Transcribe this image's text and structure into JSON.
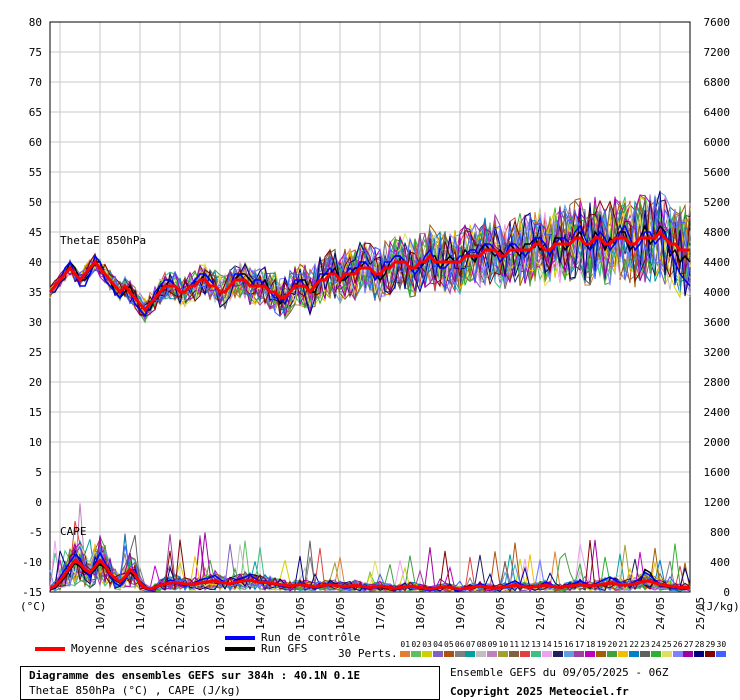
{
  "chart_data": {
    "type": "line",
    "title": "Diagramme des ensembles GEFS sur 384h : 40.1N 0.1E",
    "subtitle": "ThetaE 850hPa (°C) , CAPE (J/kg)",
    "left_axis": {
      "label": "(°C)",
      "min": -15,
      "max": 80,
      "ticks": [
        80,
        75,
        70,
        65,
        60,
        55,
        50,
        45,
        40,
        35,
        30,
        25,
        20,
        15,
        10,
        5,
        0,
        -5,
        -10,
        -15
      ]
    },
    "right_axis": {
      "label": "(J/kg)",
      "min": 0,
      "max": 7600,
      "ticks": [
        7600,
        7200,
        6800,
        6400,
        6000,
        5600,
        5200,
        4800,
        4400,
        4000,
        3600,
        3200,
        2800,
        2400,
        2000,
        1600,
        1200,
        800,
        400,
        0
      ]
    },
    "x_ticks": [
      "10/05",
      "11/05",
      "12/05",
      "13/05",
      "14/05",
      "15/05",
      "16/05",
      "17/05",
      "18/05",
      "19/05",
      "20/05",
      "21/05",
      "22/05",
      "23/05",
      "24/05",
      "25/05"
    ],
    "x_range_steps": 128,
    "grid": true,
    "panel_labels": [
      "ThetaE 850hPa",
      "CAPE"
    ],
    "thetae_mean": [
      35,
      36,
      37,
      38,
      39,
      38,
      37,
      38,
      39,
      40,
      39,
      38,
      37,
      36,
      35,
      36,
      35,
      34,
      33,
      32,
      33,
      34,
      35,
      36,
      36,
      36,
      35,
      35,
      36,
      36,
      37,
      37,
      36,
      36,
      35,
      35,
      36,
      37,
      37,
      37,
      36,
      36,
      36,
      36,
      35,
      35,
      34,
      34,
      35,
      36,
      36,
      36,
      35,
      36,
      37,
      37,
      38,
      38,
      37,
      38,
      38,
      38,
      39,
      39,
      39,
      38,
      38,
      39,
      39,
      40,
      40,
      40,
      39,
      39,
      40,
      40,
      41,
      40,
      40,
      40,
      40,
      40,
      40,
      41,
      41,
      41,
      41,
      42,
      42,
      42,
      41,
      41,
      42,
      42,
      42,
      42,
      42,
      43,
      43,
      42,
      42,
      43,
      43,
      43,
      43,
      44,
      44,
      43,
      43,
      44,
      44,
      43,
      43,
      44,
      44,
      44,
      43,
      43,
      44,
      44,
      44,
      44,
      45,
      44,
      43,
      43,
      42,
      42,
      42
    ],
    "thetae_control": [
      35,
      36,
      37,
      39,
      40,
      38,
      36,
      36,
      38,
      41,
      40,
      37,
      36,
      35,
      34,
      36,
      35,
      33,
      32,
      31,
      33,
      35,
      36,
      37,
      37,
      36,
      35,
      35,
      36,
      37,
      38,
      38,
      37,
      36,
      35,
      35,
      36,
      38,
      38,
      37,
      36,
      37,
      37,
      36,
      35,
      34,
      34,
      33,
      35,
      37,
      37,
      36,
      35,
      36,
      38,
      38,
      39,
      38,
      37,
      38,
      39,
      38,
      40,
      40,
      39,
      37,
      38,
      40,
      40,
      41,
      41,
      40,
      39,
      38,
      39,
      41,
      42,
      40,
      39,
      39,
      40,
      40,
      41,
      41,
      42,
      42,
      41,
      43,
      43,
      42,
      40,
      41,
      43,
      43,
      42,
      41,
      42,
      44,
      44,
      43,
      41,
      43,
      44,
      44,
      43,
      45,
      46,
      44,
      42,
      43,
      45,
      44,
      42,
      43,
      45,
      46,
      44,
      42,
      43,
      45,
      45,
      43,
      44,
      45,
      42,
      40,
      38,
      37,
      36
    ],
    "thetae_gfs": [
      35,
      36,
      37,
      38,
      40,
      39,
      37,
      37,
      38,
      40,
      40,
      38,
      37,
      35,
      34,
      35,
      36,
      34,
      33,
      32,
      32,
      34,
      36,
      36,
      37,
      36,
      35,
      35,
      36,
      36,
      37,
      38,
      37,
      36,
      35,
      35,
      36,
      37,
      38,
      38,
      37,
      36,
      36,
      37,
      35,
      35,
      33,
      34,
      35,
      36,
      37,
      37,
      35,
      35,
      37,
      38,
      38,
      39,
      37,
      37,
      38,
      39,
      39,
      40,
      39,
      38,
      37,
      38,
      40,
      41,
      41,
      40,
      39,
      39,
      39,
      40,
      41,
      41,
      39,
      40,
      41,
      40,
      40,
      42,
      41,
      40,
      42,
      43,
      42,
      41,
      42,
      41,
      43,
      42,
      41,
      43,
      43,
      44,
      42,
      43,
      41,
      44,
      44,
      42,
      43,
      44,
      45,
      43,
      42,
      45,
      44,
      42,
      44,
      43,
      45,
      45,
      42,
      43,
      44,
      46,
      43,
      44,
      46,
      45,
      41,
      42,
      40,
      41,
      40
    ],
    "cape_mean": [
      50,
      80,
      150,
      240,
      330,
      420,
      380,
      300,
      260,
      340,
      420,
      350,
      250,
      180,
      140,
      200,
      300,
      240,
      120,
      60,
      40,
      60,
      90,
      110,
      120,
      130,
      120,
      110,
      100,
      110,
      120,
      130,
      140,
      150,
      130,
      120,
      110,
      130,
      140,
      150,
      160,
      140,
      130,
      130,
      120,
      110,
      100,
      90,
      80,
      90,
      100,
      90,
      80,
      70,
      80,
      90,
      100,
      90,
      80,
      70,
      80,
      90,
      80,
      70,
      60,
      70,
      80,
      70,
      60,
      50,
      60,
      70,
      80,
      70,
      60,
      50,
      40,
      50,
      60,
      70,
      60,
      50,
      40,
      50,
      60,
      70,
      80,
      70,
      60,
      50,
      60,
      70,
      80,
      90,
      80,
      70,
      60,
      70,
      80,
      90,
      80,
      70,
      60,
      70,
      80,
      90,
      100,
      90,
      80,
      90,
      100,
      110,
      120,
      110,
      100,
      90,
      100,
      110,
      130,
      150,
      140,
      120,
      100,
      90,
      80,
      70,
      60,
      60,
      60
    ],
    "cape_control": [
      40,
      60,
      200,
      300,
      400,
      500,
      450,
      300,
      200,
      380,
      520,
      400,
      200,
      120,
      80,
      150,
      280,
      300,
      100,
      40,
      20,
      40,
      80,
      120,
      160,
      140,
      100,
      80,
      90,
      130,
      160,
      180,
      190,
      220,
      170,
      130,
      100,
      150,
      180,
      200,
      230,
      180,
      140,
      150,
      120,
      100,
      80,
      70,
      60,
      90,
      120,
      110,
      80,
      50,
      60,
      80,
      120,
      100,
      70,
      50,
      60,
      90,
      70,
      50,
      40,
      60,
      90,
      80,
      50,
      30,
      40,
      60,
      90,
      70,
      40,
      30,
      20,
      30,
      50,
      70,
      50,
      30,
      20,
      40,
      60,
      80,
      110,
      90,
      60,
      40,
      60,
      90,
      120,
      150,
      110,
      80,
      50,
      60,
      90,
      130,
      110,
      80,
      50,
      60,
      90,
      120,
      150,
      120,
      90,
      110,
      140,
      170,
      200,
      160,
      120,
      90,
      110,
      140,
      180,
      260,
      220,
      160,
      110,
      80,
      60,
      50,
      40,
      40,
      50
    ],
    "cape_gfs": [
      30,
      50,
      120,
      200,
      300,
      380,
      340,
      260,
      220,
      300,
      380,
      320,
      220,
      160,
      120,
      180,
      260,
      220,
      110,
      50,
      30,
      50,
      80,
      100,
      110,
      120,
      110,
      100,
      90,
      100,
      110,
      120,
      130,
      160,
      140,
      120,
      100,
      120,
      130,
      140,
      150,
      130,
      120,
      120,
      110,
      100,
      90,
      80,
      70,
      80,
      90,
      80,
      70,
      60,
      70,
      80,
      90,
      80,
      70,
      60,
      70,
      80,
      70,
      60,
      50,
      60,
      70,
      60,
      50,
      40,
      50,
      60,
      70,
      60,
      50,
      40,
      30,
      40,
      50,
      60,
      50,
      40,
      30,
      40,
      50,
      60,
      70,
      60,
      50,
      40,
      50,
      60,
      70,
      80,
      70,
      60,
      50,
      60,
      70,
      80,
      70,
      60,
      50,
      60,
      70,
      80,
      90,
      80,
      70,
      80,
      90,
      100,
      110,
      100,
      90,
      80,
      90,
      100,
      120,
      300,
      260,
      140,
      100,
      80,
      70,
      60,
      50,
      50,
      50
    ],
    "legend": {
      "control": {
        "label": "Run de contrôle",
        "color": "#0000ff"
      },
      "gfs": {
        "label": "Run GFS",
        "color": "#000000"
      },
      "mean": {
        "label": "Moyenne des scénarios",
        "color": "#ff0000"
      },
      "perts_label": "30 Perts.",
      "perts": [
        "01",
        "02",
        "03",
        "04",
        "05",
        "06",
        "07",
        "08",
        "09",
        "10",
        "11",
        "12",
        "13",
        "14",
        "15",
        "16",
        "17",
        "18",
        "19",
        "20",
        "21",
        "22",
        "23",
        "24",
        "25",
        "26",
        "27",
        "28",
        "29",
        "30"
      ],
      "pert_colors": [
        "#e08030",
        "#60c060",
        "#d0d000",
        "#8060c0",
        "#b05010",
        "#808080",
        "#00a0a0",
        "#c0c0c0",
        "#c080c0",
        "#a0a030",
        "#806040",
        "#e04040",
        "#40c080",
        "#f0a0f0",
        "#202060",
        "#60a0e0",
        "#a040a0",
        "#c000c0",
        "#a06000",
        "#40a040",
        "#f0c000",
        "#0080c0",
        "#606060",
        "#30b030",
        "#e0e060",
        "#8080ff",
        "#a000a0",
        "#000080",
        "#800000",
        "#4060ff"
      ]
    }
  },
  "footer": {
    "box_line1": "Diagramme des ensembles GEFS sur 384h : 40.1N 0.1E",
    "box_line2": "ThetaE 850hPa (°C) , CAPE (J/kg)",
    "run_info": "Ensemble GEFS du 09/05/2025 - 06Z",
    "copyright": "Copyright 2025 Meteociel.fr"
  }
}
